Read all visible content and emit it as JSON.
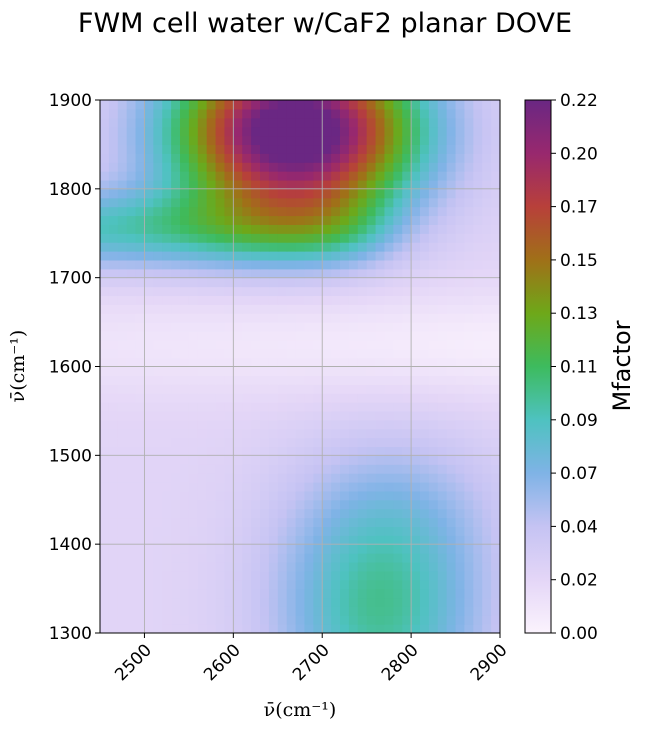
{
  "title": "FWM cell water w/CaF2 planar DOVE",
  "chart_data": {
    "type": "heatmap",
    "title": "FWM cell water w/CaF2 planar DOVE",
    "xlabel": "ν̄(cm⁻¹)",
    "ylabel": "ν̄(cm⁻¹)",
    "xlim": [
      2450,
      2900
    ],
    "ylim": [
      1300,
      1900
    ],
    "xticks": [
      "2500",
      "2600",
      "2700",
      "2800",
      "2900"
    ],
    "yticks": [
      "1300",
      "1400",
      "1500",
      "1600",
      "1700",
      "1800",
      "1900"
    ],
    "grid": true,
    "colorbar": {
      "label": "Mfactor",
      "range": [
        0,
        0.22
      ],
      "ticks": [
        "0.00",
        "0.02",
        "0.04",
        "0.07",
        "0.09",
        "0.11",
        "0.13",
        "0.15",
        "0.17",
        "0.20",
        "0.22"
      ],
      "stops": [
        "#fbf3fd",
        "#e4d6f7",
        "#c5c3f3",
        "#7fb3e6",
        "#4ec2c0",
        "#3dbb5e",
        "#6ea819",
        "#a07018",
        "#b8403a",
        "#98286e",
        "#6a2783"
      ]
    },
    "features": [
      {
        "x": 2670,
        "y": 1865,
        "value": 0.22
      },
      {
        "x": 2770,
        "y": 1340,
        "value": 0.075
      },
      {
        "x": 2800,
        "y": 1620,
        "value": 0.0
      }
    ]
  }
}
